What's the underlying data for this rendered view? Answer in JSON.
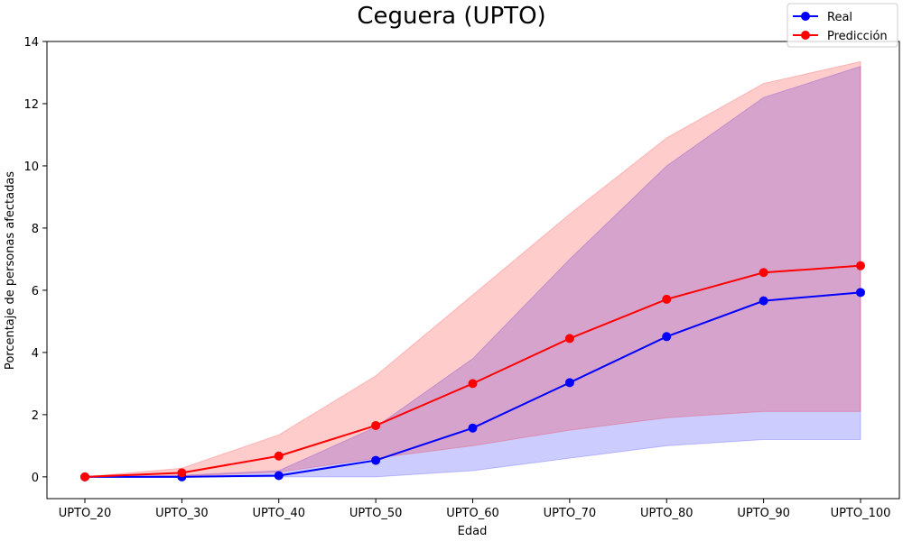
{
  "chart_data": {
    "type": "line",
    "title": "Ceguera (UPTO)",
    "xlabel": "Edad",
    "ylabel": "Porcentaje de personas afectadas",
    "categories": [
      "UPTO_20",
      "UPTO_30",
      "UPTO_40",
      "UPTO_50",
      "UPTO_60",
      "UPTO_70",
      "UPTO_80",
      "UPTO_90",
      "UPTO_100"
    ],
    "ylim": [
      -0.7,
      14.0
    ],
    "yticks": [
      0,
      2,
      4,
      6,
      8,
      10,
      12,
      14
    ],
    "grid": false,
    "legend_position": "top-right",
    "series": [
      {
        "name": "Real",
        "color": "#0000ff",
        "band_color": "#0000ff",
        "values": [
          0.0,
          0.0,
          0.04,
          0.53,
          1.57,
          3.03,
          4.51,
          5.66,
          5.93
        ],
        "lower": [
          0.0,
          0.0,
          0.0,
          0.0,
          0.2,
          0.6,
          1.0,
          1.2,
          1.2
        ],
        "upper": [
          0.0,
          0.05,
          0.2,
          1.6,
          3.8,
          7.0,
          10.0,
          12.2,
          13.2
        ]
      },
      {
        "name": "Predicción",
        "color": "#ff0000",
        "band_color": "#ff0000",
        "values": [
          0.0,
          0.13,
          0.67,
          1.65,
          3.0,
          4.45,
          5.71,
          6.57,
          6.79
        ],
        "lower": [
          0.0,
          0.02,
          0.15,
          0.6,
          1.0,
          1.5,
          1.9,
          2.1,
          2.1
        ],
        "upper": [
          0.0,
          0.28,
          1.35,
          3.25,
          5.85,
          8.45,
          10.9,
          12.65,
          13.35
        ]
      }
    ]
  }
}
